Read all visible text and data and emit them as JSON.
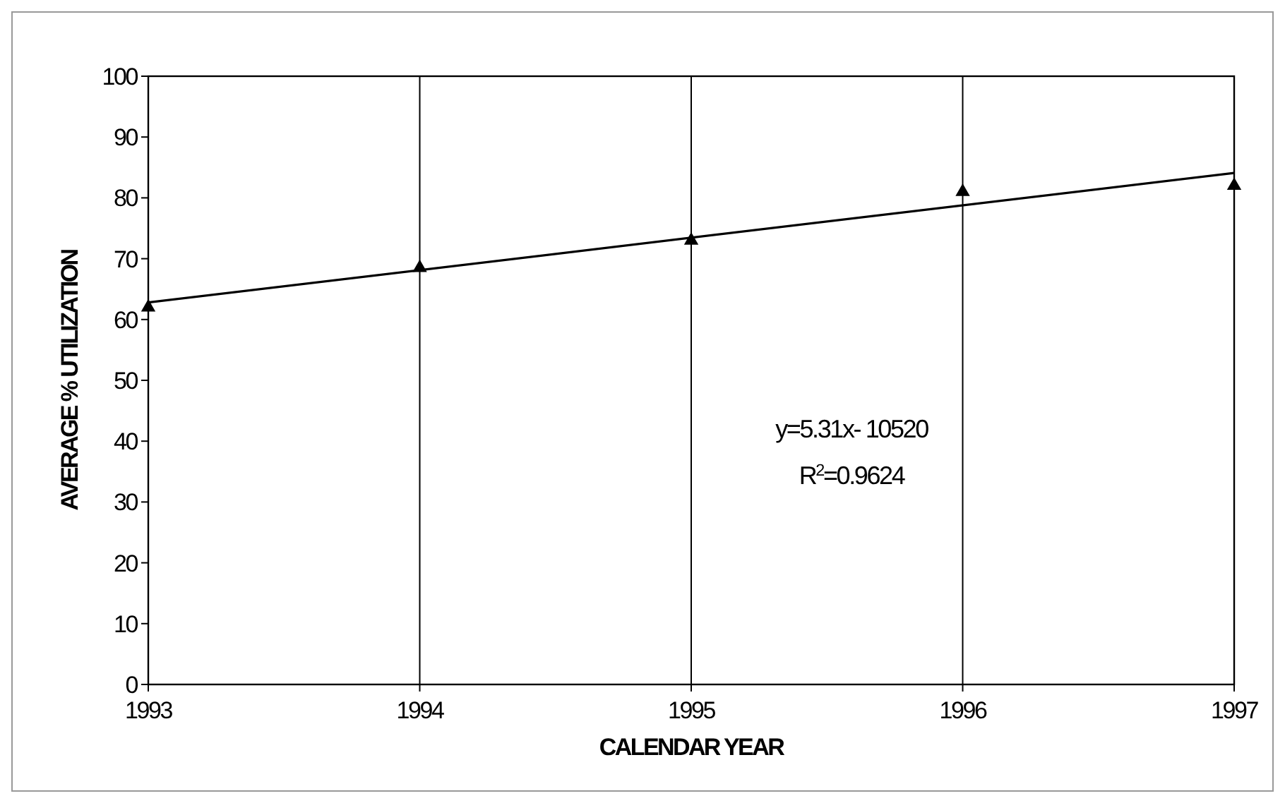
{
  "chart_data": {
    "type": "scatter",
    "xlabel": "CALENDAR YEAR",
    "ylabel": "AVERAGE % UTILIZATION",
    "x": [
      1993,
      1994,
      1995,
      1996,
      1997
    ],
    "series": [
      {
        "color": "#000000",
        "marker": "triangle",
        "values": [
          62,
          68.5,
          73,
          81,
          82
        ]
      },
      {
        "type": "line",
        "color": "#000000",
        "marker": "none",
        "x": [
          1993,
          1997
        ],
        "values": [
          62.8,
          84.1
        ]
      }
    ],
    "xlim": [
      1993,
      1997
    ],
    "xticks": [
      1993,
      1994,
      1995,
      1996,
      1997
    ],
    "ylim": [
      0,
      100
    ],
    "yticks": [
      0,
      10,
      20,
      30,
      40,
      50,
      60,
      70,
      80,
      90,
      100
    ],
    "grid": "x",
    "annotations": [
      "y=5.31x- 10520",
      "R$^{2}$=0.9624"
    ]
  }
}
